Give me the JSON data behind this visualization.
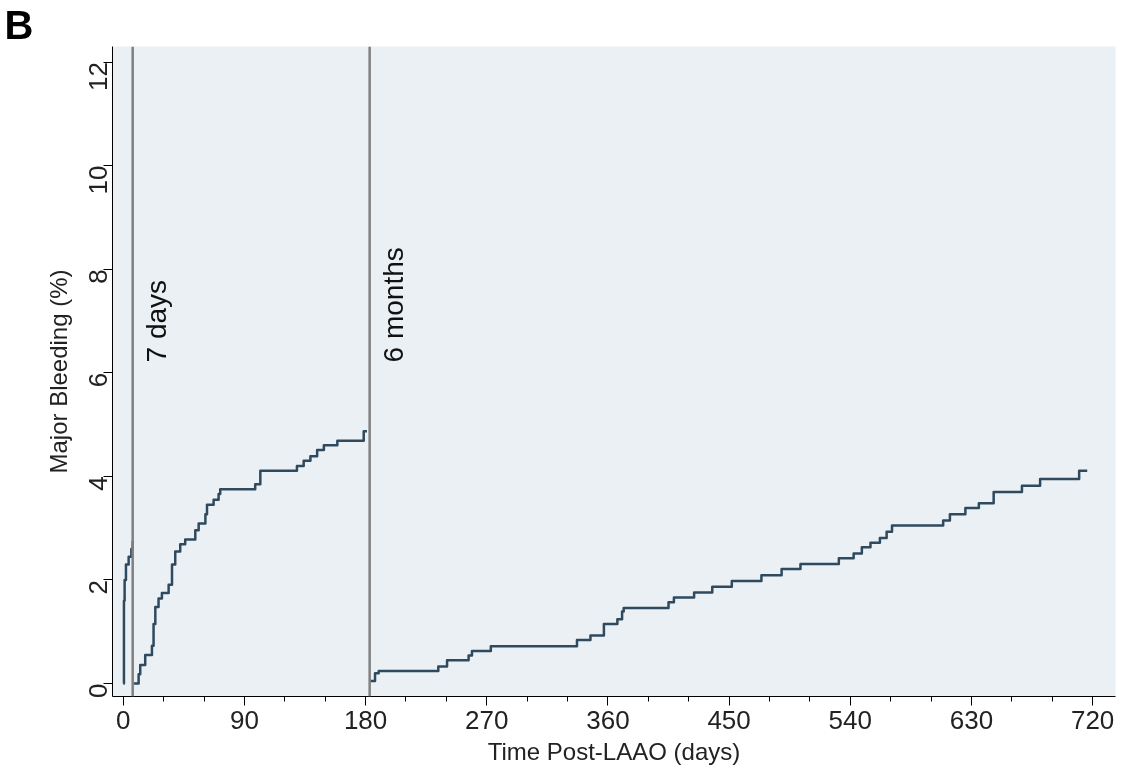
{
  "chart_data": {
    "type": "step",
    "xlabel": "Time Post-LAAO (days)",
    "ylabel": "Major Bleeding (%)",
    "annotations": [
      "B"
    ],
    "series": [
      {
        "color": "#2f4a5e",
        "x": [
          0,
          0.5,
          1,
          2,
          4,
          6,
          7
        ],
        "values": [
          0,
          1.6,
          2.0,
          2.3,
          2.45,
          2.6,
          2.75
        ]
      },
      {
        "color": "#2f4a5e",
        "x": [
          8,
          11.4,
          12.6,
          16.3,
          21.3,
          22.5,
          23.8,
          26.2,
          28.7,
          33.7,
          36.2,
          38.6,
          42.3,
          46,
          53.5,
          56,
          61,
          62.2,
          67.1,
          70.8,
          72,
          98,
          101.8,
          129,
          134,
          139,
          144,
          149,
          159,
          178.6,
          181
        ],
        "values": [
          0,
          0.18,
          0.36,
          0.55,
          0.73,
          1.15,
          1.48,
          1.64,
          1.75,
          1.91,
          2.3,
          2.55,
          2.69,
          2.78,
          2.96,
          3.09,
          3.27,
          3.45,
          3.55,
          3.66,
          3.75,
          3.85,
          4.11,
          4.2,
          4.3,
          4.39,
          4.51,
          4.6,
          4.69,
          4.87,
          4.87
        ]
      },
      {
        "color": "#2f4a5e",
        "x": [
          183.5,
          187,
          189.7,
          234,
          240.5,
          256.5,
          259,
          273,
          337,
          347,
          357,
          367,
          370.5,
          371.7,
          405,
          409,
          424,
          437.5,
          452,
          474,
          489,
          503,
          531.5,
          542.5,
          548.6,
          555,
          562,
          567,
          571,
          609,
          614,
          625.5,
          635.5,
          646.5,
          667.5,
          681,
          710,
          716
        ],
        "values": [
          0.05,
          0.2,
          0.24,
          0.33,
          0.45,
          0.54,
          0.63,
          0.72,
          0.84,
          0.93,
          1.15,
          1.24,
          1.39,
          1.46,
          1.57,
          1.66,
          1.76,
          1.87,
          1.98,
          2.09,
          2.21,
          2.31,
          2.42,
          2.51,
          2.63,
          2.72,
          2.81,
          2.93,
          3.05,
          3.15,
          3.27,
          3.39,
          3.48,
          3.7,
          3.82,
          3.95,
          4.11,
          4.11
        ]
      }
    ],
    "xlim": [
      -8,
      737
    ],
    "ylim": [
      -0.25,
      12.3
    ],
    "xticks": [
      0,
      {
        "value": 30,
        "label": null
      },
      {
        "value": 60,
        "label": null
      },
      90,
      {
        "value": 120,
        "label": null
      },
      {
        "value": 150,
        "label": null
      },
      180,
      {
        "value": 210,
        "label": null
      },
      {
        "value": 240,
        "label": null
      },
      270,
      {
        "value": 300,
        "label": null
      },
      {
        "value": 330,
        "label": null
      },
      360,
      {
        "value": 390,
        "label": null
      },
      {
        "value": 420,
        "label": null
      },
      450,
      {
        "value": 480,
        "label": null
      },
      {
        "value": 510,
        "label": null
      },
      540,
      {
        "value": 570,
        "label": null
      },
      {
        "value": 600,
        "label": null
      },
      630,
      {
        "value": 660,
        "label": null
      },
      {
        "value": 690,
        "label": null
      },
      720
    ],
    "yticks": [
      0,
      2,
      4,
      6,
      8,
      10,
      12
    ],
    "ref_lines": [
      {
        "axis": "x",
        "value": 7,
        "label": "7 days",
        "color": "#808080"
      },
      {
        "axis": "x",
        "value": 183,
        "label": "6 months",
        "color": "#808080"
      }
    ],
    "marker": "none",
    "line_style": "solid"
  }
}
